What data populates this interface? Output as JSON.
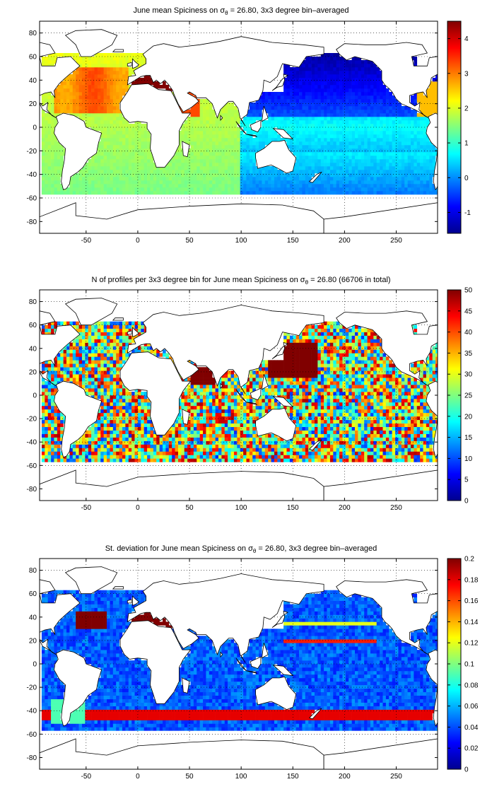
{
  "chart_data": [
    {
      "type": "heatmap",
      "title": "June mean Spiciness on σθ = 26.80, 3x3 degree bin–averaged",
      "title_parts": {
        "pre": "June mean Spiciness on ",
        "sym": "σ",
        "sub": "θ",
        "post": " = 26.80, 3x3 degree bin–averaged"
      },
      "xlabel": "",
      "ylabel": "",
      "xlim": [
        -95,
        290
      ],
      "ylim": [
        -90,
        90
      ],
      "xticks": [
        -50,
        0,
        50,
        100,
        150,
        200,
        250
      ],
      "yticks": [
        -80,
        -60,
        -40,
        -20,
        0,
        20,
        40,
        60,
        80
      ],
      "grid": "dotted",
      "colormap": "jet",
      "colorbar": {
        "range": [
          -1.6,
          4.5
        ],
        "ticks": [
          -1,
          0,
          1,
          2,
          3,
          4
        ]
      },
      "field": "spiciness"
    },
    {
      "type": "heatmap",
      "title": "N of profiles per 3x3 degree bin for June mean Spiciness on σθ = 26.80 (66706 in total)",
      "title_parts": {
        "pre": "N of profiles per 3x3 degree bin for June mean Spiciness on ",
        "sym": "σ",
        "sub": "θ",
        "post": " = 26.80 (66706 in total)"
      },
      "xlabel": "",
      "ylabel": "",
      "xlim": [
        -95,
        290
      ],
      "ylim": [
        -90,
        90
      ],
      "xticks": [
        -50,
        0,
        50,
        100,
        150,
        200,
        250
      ],
      "yticks": [
        -80,
        -60,
        -40,
        -20,
        0,
        20,
        40,
        60,
        80
      ],
      "grid": "dotted",
      "colormap": "jet",
      "colorbar": {
        "range": [
          0,
          50
        ],
        "ticks": [
          0,
          5,
          10,
          15,
          20,
          25,
          30,
          35,
          40,
          45,
          50
        ]
      },
      "field": "count"
    },
    {
      "type": "heatmap",
      "title": "St. deviation for June mean Spiciness on σθ = 26.80, 3x3 degree bin–averaged",
      "title_parts": {
        "pre": "St. deviation for June mean Spiciness on ",
        "sym": "σ",
        "sub": "θ",
        "post": " = 26.80, 3x3 degree bin–averaged"
      },
      "xlabel": "",
      "ylabel": "",
      "xlim": [
        -95,
        290
      ],
      "ylim": [
        -90,
        90
      ],
      "xticks": [
        -50,
        0,
        50,
        100,
        150,
        200,
        250
      ],
      "yticks": [
        -80,
        -60,
        -40,
        -20,
        0,
        20,
        40,
        60,
        80
      ],
      "grid": "dotted",
      "colormap": "jet",
      "colorbar": {
        "range": [
          0,
          0.2
        ],
        "ticks": [
          0,
          0.02,
          0.04,
          0.06,
          0.08,
          0.1,
          0.12,
          0.14,
          0.16,
          0.18,
          0.2
        ]
      },
      "field": "stdev"
    }
  ]
}
